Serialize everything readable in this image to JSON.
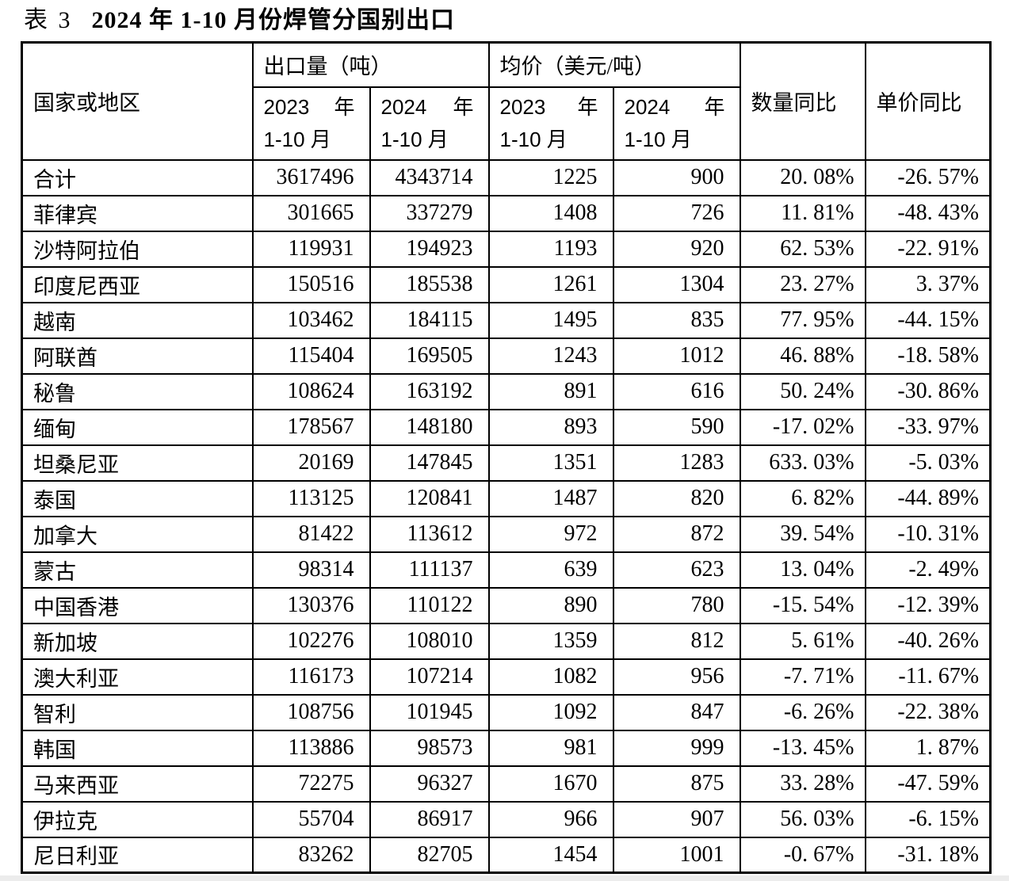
{
  "title": {
    "prefix": "表 3",
    "main": "2024 年 1-10 月份焊管分国别出口"
  },
  "table": {
    "header": {
      "country": "国家或地区",
      "export_group": "出口量（吨）",
      "price_group": "均价（美元/吨）",
      "qty_yoy": "数量同比",
      "price_yoy": "单价同比"
    },
    "subheaders": [
      {
        "year": "2023",
        "suffix": "年",
        "period": "1-10 月"
      },
      {
        "year": "2024",
        "suffix": "年",
        "period": "1-10 月"
      },
      {
        "year": "2023",
        "suffix": "年",
        "period": "1-10 月"
      },
      {
        "year": "2024",
        "suffix": "年",
        "period": "1-10 月"
      }
    ],
    "rows": [
      {
        "country": "合计",
        "export_2023": "3617496",
        "export_2024": "4343714",
        "price_2023": "1225",
        "price_2024": "900",
        "qty_yoy": "20. 08%",
        "price_yoy": "-26. 57%"
      },
      {
        "country": "菲律宾",
        "export_2023": "301665",
        "export_2024": "337279",
        "price_2023": "1408",
        "price_2024": "726",
        "qty_yoy": "11. 81%",
        "price_yoy": "-48. 43%"
      },
      {
        "country": "沙特阿拉伯",
        "export_2023": "119931",
        "export_2024": "194923",
        "price_2023": "1193",
        "price_2024": "920",
        "qty_yoy": "62. 53%",
        "price_yoy": "-22. 91%"
      },
      {
        "country": "印度尼西亚",
        "export_2023": "150516",
        "export_2024": "185538",
        "price_2023": "1261",
        "price_2024": "1304",
        "qty_yoy": "23. 27%",
        "price_yoy": "3. 37%"
      },
      {
        "country": "越南",
        "export_2023": "103462",
        "export_2024": "184115",
        "price_2023": "1495",
        "price_2024": "835",
        "qty_yoy": "77. 95%",
        "price_yoy": "-44. 15%"
      },
      {
        "country": "阿联酋",
        "export_2023": "115404",
        "export_2024": "169505",
        "price_2023": "1243",
        "price_2024": "1012",
        "qty_yoy": "46. 88%",
        "price_yoy": "-18. 58%"
      },
      {
        "country": "秘鲁",
        "export_2023": "108624",
        "export_2024": "163192",
        "price_2023": "891",
        "price_2024": "616",
        "qty_yoy": "50. 24%",
        "price_yoy": "-30. 86%"
      },
      {
        "country": "缅甸",
        "export_2023": "178567",
        "export_2024": "148180",
        "price_2023": "893",
        "price_2024": "590",
        "qty_yoy": "-17. 02%",
        "price_yoy": "-33. 97%"
      },
      {
        "country": "坦桑尼亚",
        "export_2023": "20169",
        "export_2024": "147845",
        "price_2023": "1351",
        "price_2024": "1283",
        "qty_yoy": "633. 03%",
        "price_yoy": "-5. 03%"
      },
      {
        "country": "泰国",
        "export_2023": "113125",
        "export_2024": "120841",
        "price_2023": "1487",
        "price_2024": "820",
        "qty_yoy": "6. 82%",
        "price_yoy": "-44. 89%"
      },
      {
        "country": "加拿大",
        "export_2023": "81422",
        "export_2024": "113612",
        "price_2023": "972",
        "price_2024": "872",
        "qty_yoy": "39. 54%",
        "price_yoy": "-10. 31%"
      },
      {
        "country": "蒙古",
        "export_2023": "98314",
        "export_2024": "111137",
        "price_2023": "639",
        "price_2024": "623",
        "qty_yoy": "13. 04%",
        "price_yoy": "-2. 49%"
      },
      {
        "country": "中国香港",
        "export_2023": "130376",
        "export_2024": "110122",
        "price_2023": "890",
        "price_2024": "780",
        "qty_yoy": "-15. 54%",
        "price_yoy": "-12. 39%"
      },
      {
        "country": "新加坡",
        "export_2023": "102276",
        "export_2024": "108010",
        "price_2023": "1359",
        "price_2024": "812",
        "qty_yoy": "5. 61%",
        "price_yoy": "-40. 26%"
      },
      {
        "country": "澳大利亚",
        "export_2023": "116173",
        "export_2024": "107214",
        "price_2023": "1082",
        "price_2024": "956",
        "qty_yoy": "-7. 71%",
        "price_yoy": "-11. 67%"
      },
      {
        "country": "智利",
        "export_2023": "108756",
        "export_2024": "101945",
        "price_2023": "1092",
        "price_2024": "847",
        "qty_yoy": "-6. 26%",
        "price_yoy": "-22. 38%"
      },
      {
        "country": "韩国",
        "export_2023": "113886",
        "export_2024": "98573",
        "price_2023": "981",
        "price_2024": "999",
        "qty_yoy": "-13. 45%",
        "price_yoy": "1. 87%"
      },
      {
        "country": "马来西亚",
        "export_2023": "72275",
        "export_2024": "96327",
        "price_2023": "1670",
        "price_2024": "875",
        "qty_yoy": "33. 28%",
        "price_yoy": "-47. 59%"
      },
      {
        "country": "伊拉克",
        "export_2023": "55704",
        "export_2024": "86917",
        "price_2023": "966",
        "price_2024": "907",
        "qty_yoy": "56. 03%",
        "price_yoy": "-6. 15%"
      },
      {
        "country": "尼日利亚",
        "export_2023": "83262",
        "export_2024": "82705",
        "price_2023": "1454",
        "price_2024": "1001",
        "qty_yoy": "-0. 67%",
        "price_yoy": "-31. 18%"
      }
    ]
  },
  "colors": {
    "border": "#000000",
    "background": "#ffffff",
    "text": "#000000"
  }
}
